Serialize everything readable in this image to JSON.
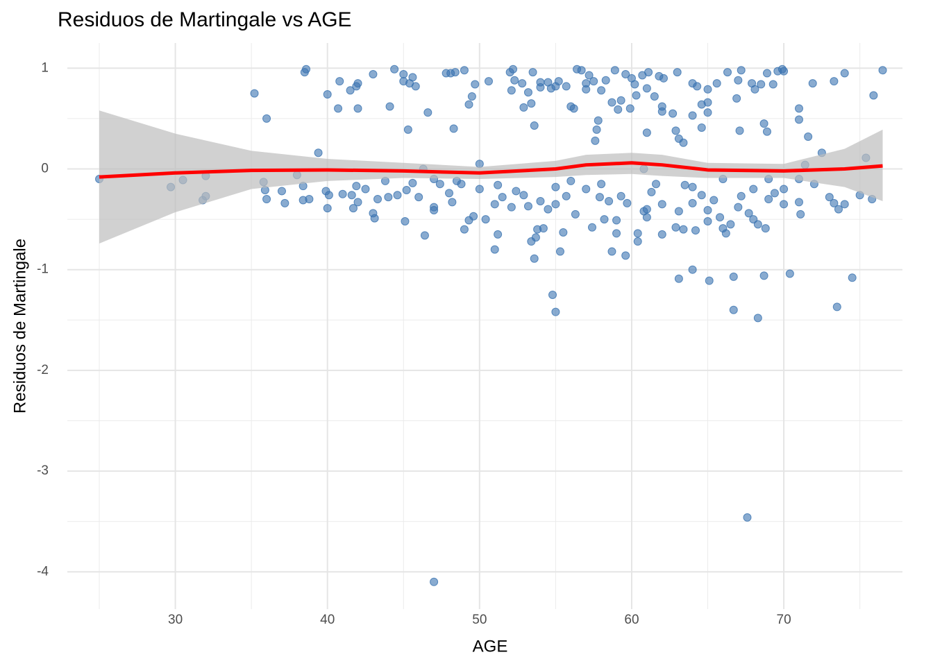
{
  "chart_data": {
    "type": "scatter",
    "title": "Residuos de Martingale vs AGE",
    "x_label": "AGE",
    "y_label": "Residuos de Martingale",
    "color": "#3a73b0",
    "xlim": [
      22.9,
      77.8
    ],
    "ylim": [
      -4.37,
      1.25
    ],
    "xticks": [
      30,
      40,
      50,
      60,
      70
    ],
    "yticks": [
      1,
      0,
      -1,
      -2,
      -3,
      -4
    ],
    "x_minor_grid": [
      25,
      35,
      45,
      55,
      65,
      75
    ],
    "y_minor_grid": [
      0.5,
      -0.5,
      -1.5,
      -2.5,
      -3.5
    ],
    "grid": true,
    "x": [
      47,
      67.6,
      55,
      54.8,
      66.7,
      68.3,
      73.5,
      63.1,
      64,
      65.1,
      66.7,
      68.7,
      70.4,
      74.5,
      59.6,
      58.7,
      55.3,
      51,
      53.6,
      35.2,
      36,
      38.6,
      38.5,
      39.4,
      40,
      40.7,
      40.8,
      41.5,
      42,
      41.9,
      42,
      43,
      44.1,
      44.4,
      45,
      45,
      45.4,
      45.6,
      45.8,
      45.3,
      46.6,
      47.8,
      48.1,
      48.4,
      48.3,
      49,
      49.3,
      49.5,
      49.7,
      50.6,
      52,
      52.2,
      52.1,
      52.3,
      52.8,
      52.9,
      53.2,
      53.5,
      53.4,
      53.6,
      54,
      54,
      54.5,
      54.7,
      55,
      55.2,
      55.7,
      56,
      56.2,
      56.4,
      56.7,
      57,
      57,
      57.2,
      57.5,
      57.6,
      57.7,
      57.8,
      58,
      58.3,
      58.7,
      58.9,
      59.1,
      59.3,
      59.6,
      59.9,
      60,
      60.2,
      60.3,
      60.7,
      61,
      61,
      61.1,
      61.5,
      61.8,
      62,
      62,
      62.1,
      62.7,
      62.9,
      63,
      63.1,
      63.4,
      64,
      64,
      64.3,
      64.6,
      64.6,
      65,
      65,
      65,
      65.6,
      66.3,
      66.9,
      67,
      67.1,
      67.2,
      67.9,
      68.1,
      68.5,
      68.7,
      68.9,
      68.9,
      69.3,
      69.6,
      69.9,
      70,
      71,
      71,
      71.6,
      71.9,
      72.5,
      73.3,
      74,
      75.4,
      75.9,
      76.5,
      71.4,
      46.3,
      50,
      60.8,
      25,
      29.7,
      30.5,
      31.8,
      32,
      32,
      35.8,
      35.9,
      36,
      37,
      37.2,
      38,
      38.4,
      38.4,
      38.8,
      39.9,
      40,
      40.1,
      41,
      41.6,
      41.7,
      41.9,
      42,
      42.5,
      43,
      43.1,
      43.3,
      43.8,
      44,
      44.6,
      45.1,
      45.2,
      45.6,
      46,
      46.4,
      47,
      47,
      47,
      47.4,
      48,
      48.2,
      48.5,
      49,
      49.3,
      49.6,
      50,
      50.4,
      51,
      51.2,
      51.5,
      52.1,
      52.4,
      52.9,
      53.2,
      53.4,
      53.7,
      53.8,
      54,
      54.2,
      54.5,
      55,
      55,
      55.5,
      55.7,
      56.3,
      57,
      57.4,
      57.9,
      58.2,
      58.5,
      59,
      59,
      59.3,
      59.7,
      60.4,
      60.4,
      60.8,
      61,
      61,
      61.3,
      62,
      62,
      62.9,
      63.1,
      63.4,
      64,
      64,
      64.2,
      64.6,
      65,
      65,
      65.4,
      65.8,
      66,
      66.2,
      66.5,
      67,
      67.2,
      67.7,
      68,
      68,
      68.3,
      68.8,
      69,
      69.4,
      70,
      70,
      71,
      71,
      71.1,
      72,
      73,
      73.3,
      73.6,
      74,
      75,
      75.8,
      48.8,
      51.2,
      56,
      58,
      61.6,
      63.5,
      66,
      69
    ],
    "values": [
      -4.1,
      -3.46,
      -1.42,
      -1.25,
      -1.4,
      -1.48,
      -1.37,
      -1.09,
      -1.0,
      -1.11,
      -1.07,
      -1.06,
      -1.04,
      -1.08,
      -0.86,
      -0.82,
      -0.82,
      -0.8,
      -0.89,
      0.75,
      0.5,
      0.99,
      0.96,
      0.16,
      0.74,
      0.6,
      0.87,
      0.78,
      0.85,
      0.82,
      0.6,
      0.94,
      0.62,
      0.99,
      0.94,
      0.87,
      0.85,
      0.91,
      0.82,
      0.39,
      0.56,
      0.95,
      0.95,
      0.96,
      0.4,
      0.98,
      0.64,
      0.72,
      0.84,
      0.87,
      0.96,
      0.99,
      0.78,
      0.88,
      0.85,
      0.61,
      0.76,
      0.96,
      0.65,
      0.43,
      0.86,
      0.81,
      0.86,
      0.8,
      0.82,
      0.87,
      0.82,
      0.62,
      0.6,
      0.99,
      0.98,
      0.85,
      0.79,
      0.93,
      0.87,
      0.28,
      0.39,
      0.48,
      0.78,
      0.88,
      0.66,
      0.98,
      0.59,
      0.68,
      0.94,
      0.6,
      0.9,
      0.84,
      0.73,
      0.93,
      0.8,
      0.36,
      0.96,
      0.72,
      0.92,
      0.57,
      0.62,
      0.9,
      0.55,
      0.38,
      0.96,
      0.3,
      0.26,
      0.85,
      0.53,
      0.82,
      0.41,
      0.64,
      0.56,
      0.79,
      0.66,
      0.85,
      0.96,
      0.7,
      0.88,
      0.38,
      0.98,
      0.85,
      0.79,
      0.84,
      0.45,
      0.37,
      0.95,
      0.84,
      0.97,
      0.99,
      0.97,
      0.6,
      0.49,
      0.32,
      0.85,
      0.16,
      0.87,
      0.95,
      0.11,
      0.73,
      0.98,
      0.04,
      0.0,
      0.05,
      0.0,
      -0.1,
      -0.18,
      -0.11,
      -0.31,
      -0.27,
      -0.07,
      -0.13,
      -0.21,
      -0.3,
      -0.22,
      -0.34,
      -0.06,
      -0.17,
      -0.31,
      -0.3,
      -0.22,
      -0.39,
      -0.26,
      -0.25,
      -0.26,
      -0.39,
      -0.17,
      -0.33,
      -0.2,
      -0.44,
      -0.49,
      -0.3,
      -0.12,
      -0.28,
      -0.26,
      -0.52,
      -0.21,
      -0.14,
      -0.28,
      -0.66,
      -0.38,
      -0.41,
      -0.1,
      -0.15,
      -0.24,
      -0.33,
      -0.12,
      -0.6,
      -0.51,
      -0.47,
      -0.2,
      -0.5,
      -0.35,
      -0.65,
      -0.28,
      -0.38,
      -0.22,
      -0.26,
      -0.37,
      -0.72,
      -0.68,
      -0.6,
      -0.32,
      -0.59,
      -0.4,
      -0.35,
      -0.18,
      -0.63,
      -0.27,
      -0.45,
      -0.2,
      -0.58,
      -0.28,
      -0.5,
      -0.32,
      -0.51,
      -0.64,
      -0.27,
      -0.34,
      -0.64,
      -0.72,
      -0.42,
      -0.4,
      -0.48,
      -0.23,
      -0.65,
      -0.35,
      -0.58,
      -0.42,
      -0.6,
      -0.18,
      -0.34,
      -0.61,
      -0.26,
      -0.41,
      -0.52,
      -0.31,
      -0.48,
      -0.59,
      -0.64,
      -0.55,
      -0.38,
      -0.27,
      -0.44,
      -0.2,
      -0.5,
      -0.55,
      -0.59,
      -0.3,
      -0.24,
      -0.35,
      -0.2,
      -0.1,
      -0.33,
      -0.45,
      -0.15,
      -0.28,
      -0.34,
      -0.4,
      -0.35,
      -0.26,
      -0.3,
      -0.15,
      -0.16,
      -0.12,
      -0.15,
      -0.15,
      -0.16,
      -0.1,
      -0.1
    ],
    "smooth": {
      "color": "#ff0000",
      "band_color": "#bebebe",
      "x": [
        25,
        30,
        35,
        40,
        45,
        50,
        55,
        57,
        60,
        62,
        65,
        70,
        74,
        76.5
      ],
      "values": [
        -0.08,
        -0.04,
        -0.015,
        -0.01,
        -0.02,
        -0.04,
        0,
        0.04,
        0.06,
        0.04,
        -0.01,
        -0.02,
        0,
        0.03
      ],
      "upper": [
        0.58,
        0.35,
        0.18,
        0.1,
        0.06,
        0.02,
        0.08,
        0.14,
        0.16,
        0.14,
        0.06,
        0.05,
        0.2,
        0.39
      ],
      "lower": [
        -0.74,
        -0.43,
        -0.2,
        -0.12,
        -0.09,
        -0.1,
        -0.08,
        -0.06,
        -0.05,
        -0.07,
        -0.09,
        -0.09,
        -0.18,
        -0.32
      ]
    }
  }
}
